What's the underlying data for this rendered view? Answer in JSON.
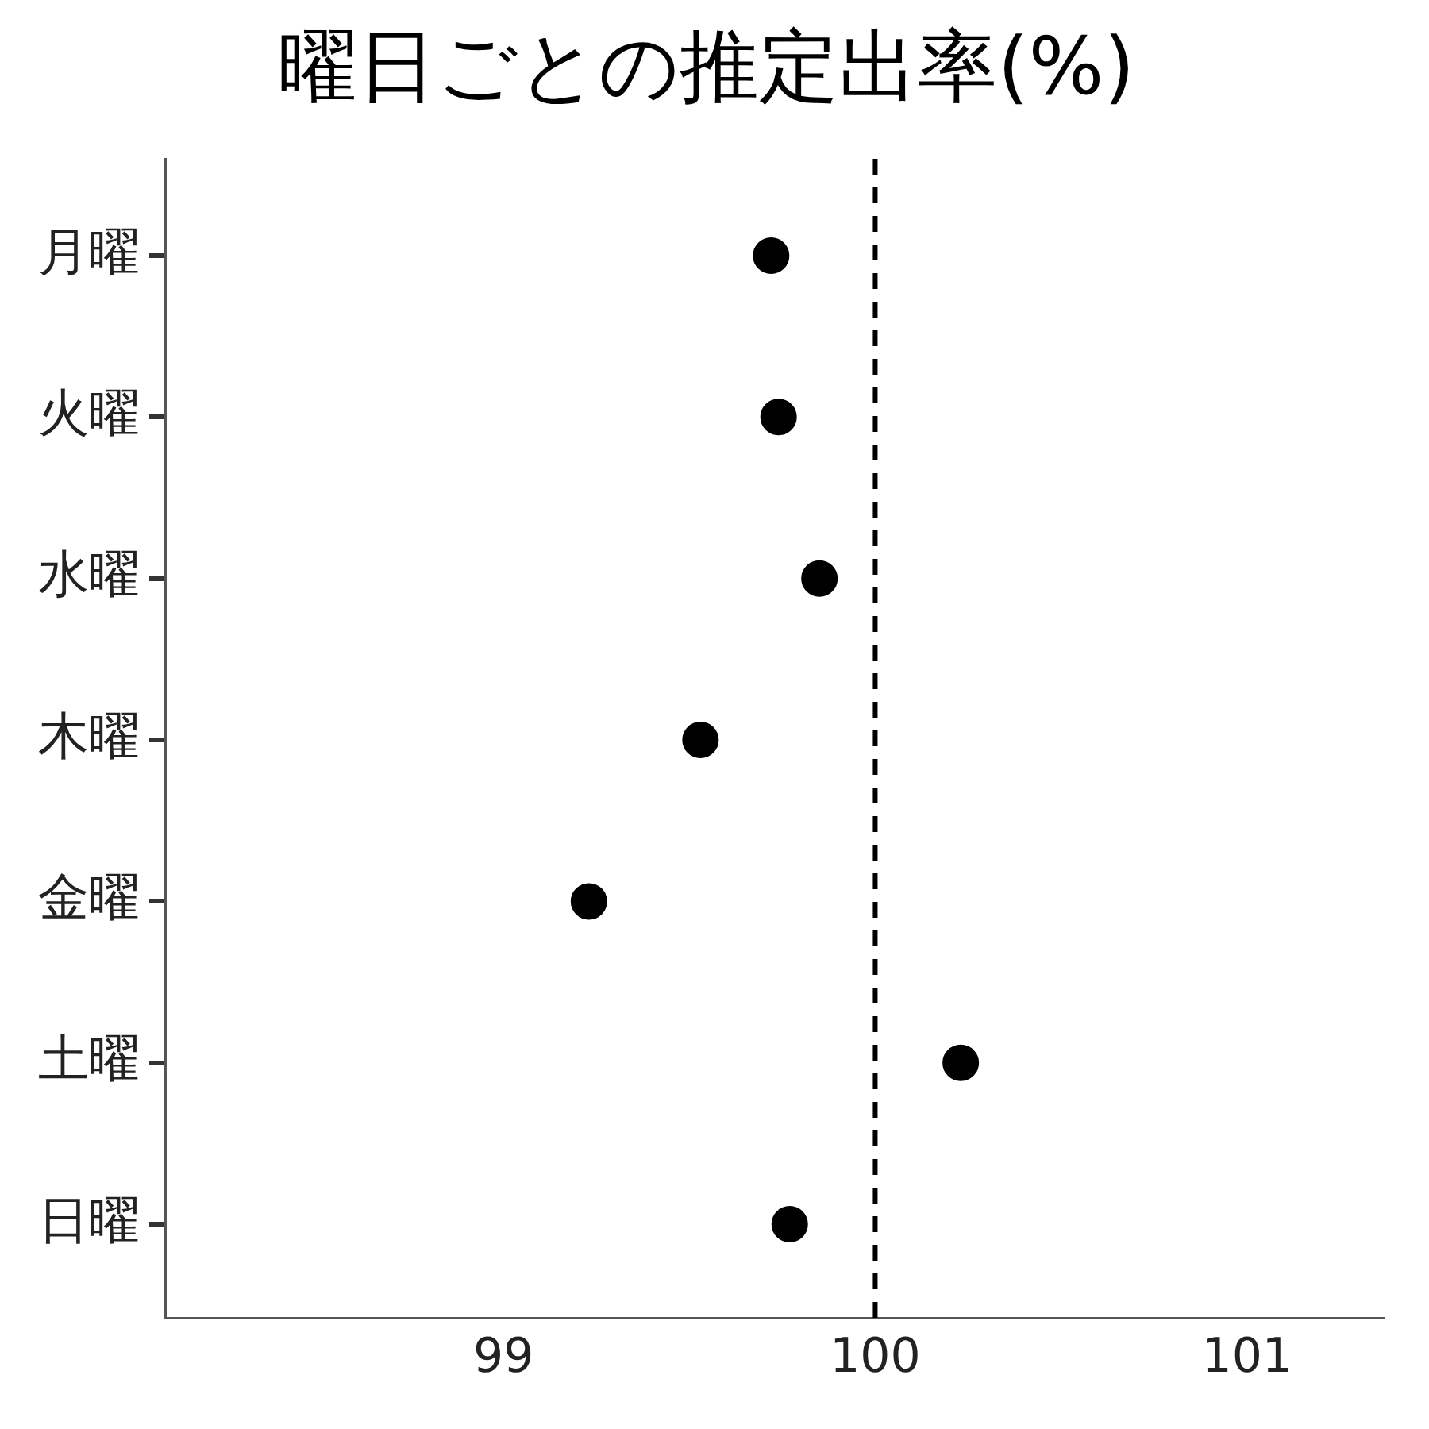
{
  "chart_data": {
    "type": "scatter",
    "title": "曜日ごとの推定出率(%)",
    "categories": [
      "月曜",
      "火曜",
      "水曜",
      "木曜",
      "金曜",
      "土曜",
      "日曜"
    ],
    "orientation": "horizontal",
    "series": [
      {
        "color": "#000000",
        "values": [
          99.72,
          99.74,
          99.85,
          99.53,
          99.23,
          100.23,
          99.77
        ]
      }
    ],
    "xlim": [
      98.09,
      101.37
    ],
    "xticks": [
      99,
      100,
      101
    ],
    "ref_lines": [
      {
        "axis": "x",
        "value": 100,
        "color": "#000000",
        "line_style": "dashed"
      }
    ],
    "marker": "circle",
    "grid": false,
    "legend": false
  }
}
